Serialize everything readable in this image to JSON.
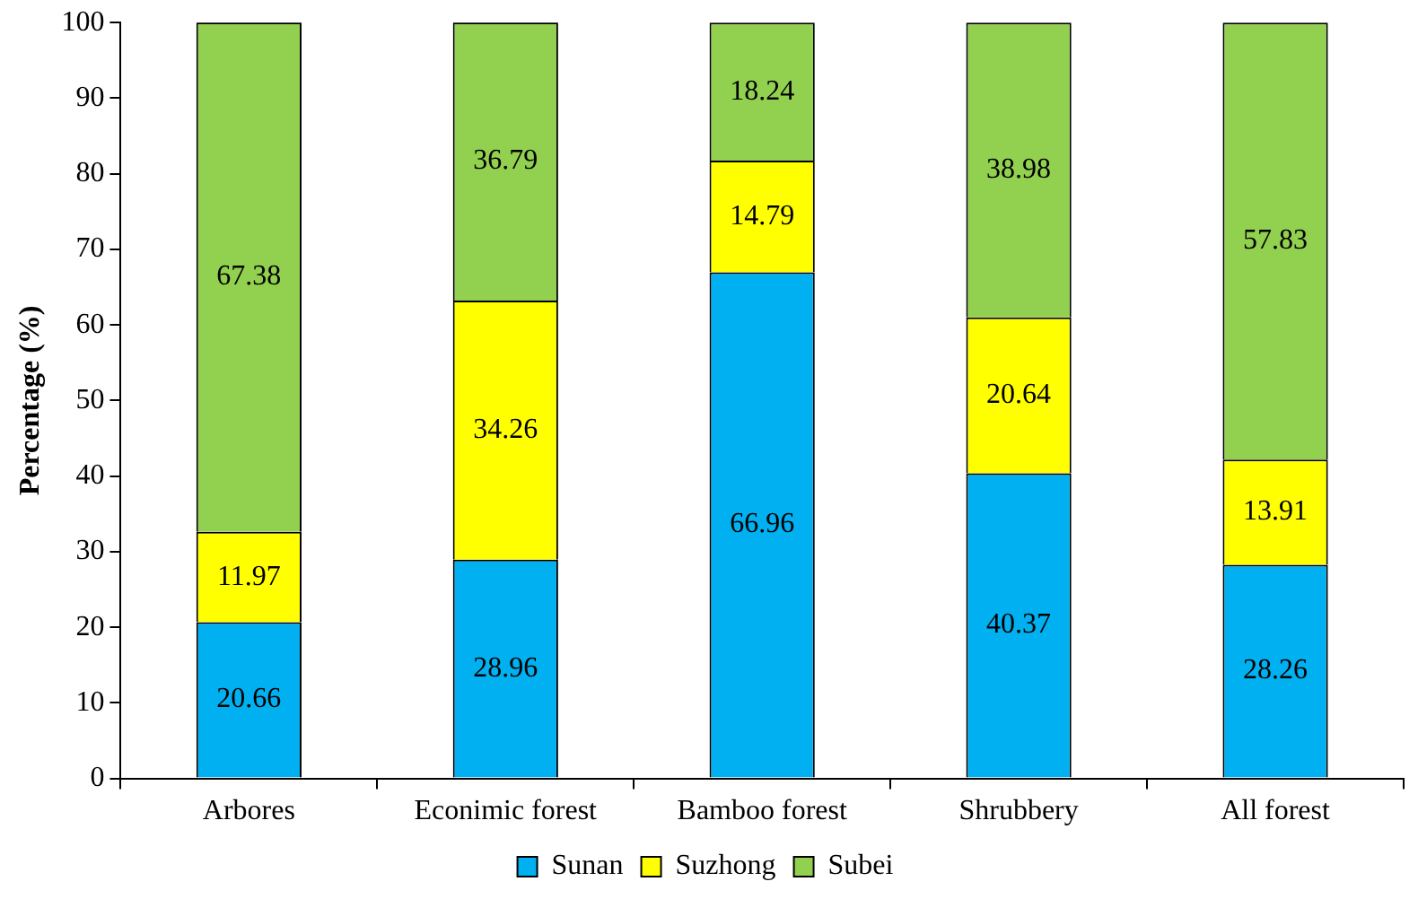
{
  "chart_data": {
    "type": "bar",
    "stacked": true,
    "ylabel": "Percentage (%)",
    "categories": [
      "Arbores",
      "Econimic forest",
      "Bamboo forest",
      "Shrubbery",
      "All forest"
    ],
    "series": [
      {
        "name": "Sunan",
        "color": "#00b0f0",
        "values": [
          20.66,
          28.96,
          66.96,
          40.37,
          28.26
        ]
      },
      {
        "name": "Suzhong",
        "color": "#ffff00",
        "values": [
          11.97,
          34.26,
          14.79,
          20.64,
          13.91
        ]
      },
      {
        "name": "Subei",
        "color": "#92d050",
        "values": [
          67.38,
          36.79,
          18.24,
          38.98,
          57.83
        ]
      }
    ],
    "ylim": [
      0,
      100
    ],
    "yticks": [
      0,
      10,
      20,
      30,
      40,
      50,
      60,
      70,
      80,
      90,
      100
    ],
    "grid": false,
    "legend": "bottom",
    "data_labels": true
  }
}
